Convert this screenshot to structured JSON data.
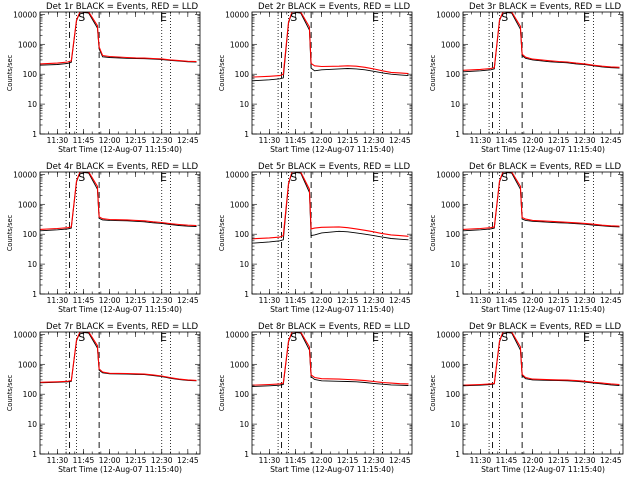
{
  "figure": {
    "colors": {
      "events": "#000000",
      "lld": "#ff0000",
      "axes": "#000000",
      "background": "#ffffff"
    }
  },
  "chart_data": [
    {
      "type": "line",
      "title": "Det 1r BLACK = Events, RED = LLD",
      "xlabel": "Start Time (12-Aug-07 11:15:40)",
      "ylabel": "Counts/sec",
      "yscale": "log",
      "ylim": [
        1,
        12000
      ],
      "x_ticks": [
        "11:30",
        "11:45",
        "12:00",
        "12:15",
        "12:30",
        "12:45"
      ],
      "y_ticks": [
        "1",
        "10",
        "100",
        "1000",
        "10000"
      ],
      "markers": [
        {
          "label": "S",
          "x": "11:44"
        },
        {
          "label": "E",
          "x": "12:31"
        }
      ],
      "vlines_dotted": [
        "11:35",
        "11:41",
        "12:30",
        "12:35"
      ],
      "vlines_dashed": [
        "11:37",
        "11:54"
      ],
      "x": [
        "11:20",
        "11:30",
        "11:36",
        "11:38",
        "11:41",
        "11:43",
        "11:48",
        "11:53",
        "11:54",
        "11:56",
        "12:00",
        "12:10",
        "12:15",
        "12:20",
        "12:25",
        "12:30",
        "12:35",
        "12:40",
        "12:45",
        "12:50"
      ],
      "series": [
        {
          "name": "Events",
          "color": "#000000",
          "values": [
            200,
            210,
            230,
            250,
            6000,
            12000,
            11000,
            3500,
            700,
            380,
            360,
            340,
            335,
            330,
            320,
            310,
            290,
            275,
            260,
            255
          ]
        },
        {
          "name": "LLD",
          "color": "#ff0000",
          "values": [
            220,
            235,
            255,
            280,
            6500,
            12000,
            12000,
            4200,
            820,
            420,
            390,
            360,
            350,
            345,
            335,
            325,
            300,
            285,
            270,
            265
          ]
        }
      ]
    },
    {
      "type": "line",
      "title": "Det 2r BLACK = Events, RED = LLD",
      "xlabel": "Start Time (12-Aug-07 11:15:40)",
      "ylabel": "Counts/sec",
      "yscale": "log",
      "ylim": [
        1,
        12000
      ],
      "x_ticks": [
        "11:30",
        "11:45",
        "12:00",
        "12:15",
        "12:30",
        "12:45"
      ],
      "y_ticks": [
        "1",
        "10",
        "100",
        "1000",
        "10000"
      ],
      "markers": [
        {
          "label": "S",
          "x": "11:44"
        },
        {
          "label": "E",
          "x": "12:31"
        }
      ],
      "vlines_dotted": [
        "11:35",
        "11:41",
        "12:30",
        "12:35"
      ],
      "vlines_dashed": [
        "11:37",
        "11:54"
      ],
      "x": [
        "11:20",
        "11:30",
        "11:36",
        "11:38",
        "11:41",
        "11:43",
        "11:48",
        "11:53",
        "11:54",
        "11:56",
        "12:00",
        "12:10",
        "12:15",
        "12:20",
        "12:25",
        "12:30",
        "12:35",
        "12:40",
        "12:45",
        "12:50"
      ],
      "series": [
        {
          "name": "Events",
          "color": "#000000",
          "values": [
            60,
            65,
            70,
            75,
            5000,
            12000,
            11000,
            3000,
            160,
            130,
            140,
            150,
            155,
            150,
            140,
            125,
            110,
            100,
            95,
            90
          ]
        },
        {
          "name": "LLD",
          "color": "#ff0000",
          "values": [
            80,
            85,
            90,
            100,
            5500,
            12000,
            12000,
            3800,
            230,
            190,
            180,
            185,
            190,
            185,
            170,
            150,
            130,
            115,
            110,
            105
          ]
        }
      ]
    },
    {
      "type": "line",
      "title": "Det 3r BLACK = Events, RED = LLD",
      "xlabel": "Start Time (12-Aug-07 11:15:40)",
      "ylabel": "Counts/sec",
      "yscale": "log",
      "ylim": [
        1,
        12000
      ],
      "x_ticks": [
        "11:30",
        "11:45",
        "12:00",
        "12:15",
        "12:30",
        "12:45"
      ],
      "y_ticks": [
        "1",
        "10",
        "100",
        "1000",
        "10000"
      ],
      "markers": [
        {
          "label": "S",
          "x": "11:44"
        },
        {
          "label": "E",
          "x": "12:31"
        }
      ],
      "vlines_dotted": [
        "11:35",
        "11:41",
        "12:30",
        "12:35"
      ],
      "vlines_dashed": [
        "11:37",
        "11:54"
      ],
      "x": [
        "11:20",
        "11:30",
        "11:36",
        "11:38",
        "11:41",
        "11:43",
        "11:48",
        "11:53",
        "11:54",
        "11:56",
        "12:00",
        "12:10",
        "12:15",
        "12:20",
        "12:25",
        "12:30",
        "12:35",
        "12:40",
        "12:45",
        "12:50"
      ],
      "series": [
        {
          "name": "Events",
          "color": "#000000",
          "values": [
            120,
            130,
            140,
            150,
            6000,
            12000,
            11000,
            3200,
            420,
            340,
            300,
            260,
            250,
            240,
            220,
            210,
            190,
            175,
            165,
            160
          ]
        },
        {
          "name": "LLD",
          "color": "#ff0000",
          "values": [
            135,
            145,
            155,
            165,
            6500,
            12000,
            12000,
            4000,
            470,
            370,
            320,
            280,
            265,
            255,
            235,
            220,
            200,
            185,
            175,
            170
          ]
        }
      ]
    },
    {
      "type": "line",
      "title": "Det 4r BLACK = Events, RED = LLD",
      "xlabel": "Start Time (12-Aug-07 11:15:40)",
      "ylabel": "Counts/sec",
      "yscale": "log",
      "ylim": [
        1,
        12000
      ],
      "x_ticks": [
        "11:30",
        "11:45",
        "12:00",
        "12:15",
        "12:30",
        "12:45"
      ],
      "y_ticks": [
        "1",
        "10",
        "100",
        "1000",
        "10000"
      ],
      "markers": [
        {
          "label": "S",
          "x": "11:44"
        },
        {
          "label": "E",
          "x": "12:31"
        }
      ],
      "vlines_dotted": [
        "11:35",
        "11:41",
        "12:30",
        "12:35"
      ],
      "vlines_dashed": [
        "11:37",
        "11:54"
      ],
      "x": [
        "11:20",
        "11:30",
        "11:36",
        "11:38",
        "11:41",
        "11:43",
        "11:48",
        "11:53",
        "11:54",
        "11:56",
        "12:00",
        "12:10",
        "12:15",
        "12:20",
        "12:25",
        "12:30",
        "12:35",
        "12:40",
        "12:45",
        "12:50"
      ],
      "series": [
        {
          "name": "Events",
          "color": "#000000",
          "values": [
            130,
            140,
            150,
            160,
            5500,
            12000,
            11000,
            3200,
            340,
            300,
            290,
            280,
            270,
            260,
            240,
            230,
            210,
            195,
            185,
            180
          ]
        },
        {
          "name": "LLD",
          "color": "#ff0000",
          "values": [
            145,
            155,
            165,
            175,
            6000,
            12000,
            12000,
            4000,
            380,
            330,
            310,
            300,
            290,
            280,
            260,
            245,
            225,
            210,
            200,
            195
          ]
        }
      ]
    },
    {
      "type": "line",
      "title": "Det 5r BLACK = Events, RED = LLD",
      "xlabel": "Start Time (12-Aug-07 11:15:40)",
      "ylabel": "Counts/sec",
      "yscale": "log",
      "ylim": [
        1,
        12000
      ],
      "x_ticks": [
        "11:30",
        "11:45",
        "12:00",
        "12:15",
        "12:30",
        "12:45"
      ],
      "y_ticks": [
        "1",
        "10",
        "100",
        "1000",
        "10000"
      ],
      "markers": [
        {
          "label": "S",
          "x": "11:44"
        },
        {
          "label": "E",
          "x": "12:31"
        }
      ],
      "vlines_dotted": [
        "11:35",
        "11:41",
        "12:30",
        "12:35"
      ],
      "vlines_dashed": [
        "11:37",
        "11:54"
      ],
      "x": [
        "11:20",
        "11:30",
        "11:36",
        "11:38",
        "11:41",
        "11:43",
        "11:48",
        "11:53",
        "11:54",
        "11:56",
        "12:00",
        "12:10",
        "12:15",
        "12:20",
        "12:25",
        "12:30",
        "12:35",
        "12:40",
        "12:45",
        "12:50"
      ],
      "series": [
        {
          "name": "Events",
          "color": "#000000",
          "values": [
            50,
            55,
            60,
            65,
            4500,
            12000,
            11000,
            2500,
            90,
            95,
            110,
            125,
            120,
            110,
            100,
            90,
            80,
            72,
            68,
            65
          ]
        },
        {
          "name": "LLD",
          "color": "#ff0000",
          "values": [
            70,
            75,
            80,
            90,
            5000,
            12000,
            12000,
            3200,
            150,
            160,
            170,
            175,
            165,
            150,
            135,
            120,
            105,
            95,
            90,
            85
          ]
        }
      ]
    },
    {
      "type": "line",
      "title": "Det 6r BLACK = Events, RED = LLD",
      "xlabel": "Start Time (12-Aug-07 11:15:40)",
      "ylabel": "Counts/sec",
      "yscale": "log",
      "ylim": [
        1,
        12000
      ],
      "x_ticks": [
        "11:30",
        "11:45",
        "12:00",
        "12:15",
        "12:30",
        "12:45"
      ],
      "y_ticks": [
        "1",
        "10",
        "100",
        "1000",
        "10000"
      ],
      "markers": [
        {
          "label": "S",
          "x": "11:44"
        },
        {
          "label": "E",
          "x": "12:31"
        }
      ],
      "vlines_dotted": [
        "11:35",
        "11:41",
        "12:30",
        "12:35"
      ],
      "vlines_dashed": [
        "11:37",
        "11:54"
      ],
      "x": [
        "11:20",
        "11:30",
        "11:36",
        "11:38",
        "11:41",
        "11:43",
        "11:48",
        "11:53",
        "11:54",
        "11:56",
        "12:00",
        "12:10",
        "12:15",
        "12:20",
        "12:25",
        "12:30",
        "12:35",
        "12:40",
        "12:45",
        "12:50"
      ],
      "series": [
        {
          "name": "Events",
          "color": "#000000",
          "values": [
            130,
            140,
            150,
            160,
            5500,
            12000,
            11000,
            3200,
            320,
            290,
            270,
            250,
            240,
            235,
            225,
            215,
            200,
            190,
            180,
            175
          ]
        },
        {
          "name": "LLD",
          "color": "#ff0000",
          "values": [
            145,
            155,
            165,
            175,
            6000,
            12000,
            12000,
            4000,
            360,
            320,
            290,
            270,
            260,
            250,
            240,
            230,
            215,
            200,
            190,
            185
          ]
        }
      ]
    },
    {
      "type": "line",
      "title": "Det 7r BLACK = Events, RED = LLD",
      "xlabel": "Start Time (12-Aug-07 11:15:40)",
      "ylabel": "Counts/sec",
      "yscale": "log",
      "ylim": [
        1,
        12000
      ],
      "x_ticks": [
        "11:30",
        "11:45",
        "12:00",
        "12:15",
        "12:30",
        "12:45"
      ],
      "y_ticks": [
        "1",
        "10",
        "100",
        "1000",
        "10000"
      ],
      "markers": [
        {
          "label": "S",
          "x": "11:44"
        },
        {
          "label": "E",
          "x": "12:31"
        }
      ],
      "vlines_dotted": [
        "11:35",
        "11:41",
        "12:30",
        "12:35"
      ],
      "vlines_dashed": [
        "11:37",
        "11:54"
      ],
      "x": [
        "11:20",
        "11:30",
        "11:36",
        "11:38",
        "11:41",
        "11:43",
        "11:48",
        "11:53",
        "11:54",
        "11:56",
        "12:00",
        "12:10",
        "12:15",
        "12:20",
        "12:25",
        "12:30",
        "12:35",
        "12:40",
        "12:45",
        "12:50"
      ],
      "series": [
        {
          "name": "Events",
          "color": "#000000",
          "values": [
            240,
            250,
            260,
            270,
            6000,
            12000,
            11000,
            3500,
            640,
            520,
            480,
            470,
            460,
            450,
            420,
            390,
            340,
            310,
            290,
            280
          ]
        },
        {
          "name": "LLD",
          "color": "#ff0000",
          "values": [
            250,
            260,
            270,
            285,
            6500,
            12000,
            12000,
            4200,
            700,
            550,
            500,
            490,
            480,
            470,
            440,
            405,
            355,
            320,
            300,
            290
          ]
        }
      ]
    },
    {
      "type": "line",
      "title": "Det 8r BLACK = Events, RED = LLD",
      "xlabel": "Start Time (12-Aug-07 11:15:40)",
      "ylabel": "Counts/sec",
      "yscale": "log",
      "ylim": [
        1,
        12000
      ],
      "x_ticks": [
        "11:30",
        "11:45",
        "12:00",
        "12:15",
        "12:30",
        "12:45"
      ],
      "y_ticks": [
        "1",
        "10",
        "100",
        "1000",
        "10000"
      ],
      "markers": [
        {
          "label": "S",
          "x": "11:44"
        },
        {
          "label": "E",
          "x": "12:31"
        }
      ],
      "vlines_dotted": [
        "11:35",
        "11:41",
        "12:30",
        "12:35"
      ],
      "vlines_dashed": [
        "11:37",
        "11:54"
      ],
      "x": [
        "11:20",
        "11:30",
        "11:36",
        "11:38",
        "11:41",
        "11:43",
        "11:48",
        "11:53",
        "11:54",
        "11:56",
        "12:00",
        "12:10",
        "12:15",
        "12:20",
        "12:25",
        "12:30",
        "12:35",
        "12:40",
        "12:45",
        "12:50"
      ],
      "series": [
        {
          "name": "Events",
          "color": "#000000",
          "values": [
            180,
            190,
            200,
            210,
            5500,
            12000,
            11000,
            3000,
            380,
            310,
            280,
            270,
            265,
            260,
            245,
            230,
            215,
            205,
            200,
            195
          ]
        },
        {
          "name": "LLD",
          "color": "#ff0000",
          "values": [
            200,
            210,
            220,
            235,
            6000,
            12000,
            12000,
            3800,
            440,
            360,
            330,
            320,
            310,
            300,
            285,
            265,
            245,
            235,
            225,
            220
          ]
        }
      ]
    },
    {
      "type": "line",
      "title": "Det 9r BLACK = Events, RED = LLD",
      "xlabel": "Start Time (12-Aug-07 11:15:40)",
      "ylabel": "Counts/sec",
      "yscale": "log",
      "ylim": [
        1,
        12000
      ],
      "x_ticks": [
        "11:30",
        "11:45",
        "12:00",
        "12:15",
        "12:30",
        "12:45"
      ],
      "y_ticks": [
        "1",
        "10",
        "100",
        "1000",
        "10000"
      ],
      "markers": [
        {
          "label": "S",
          "x": "11:44"
        },
        {
          "label": "E",
          "x": "12:31"
        }
      ],
      "vlines_dotted": [
        "11:35",
        "11:41",
        "12:30",
        "12:35"
      ],
      "vlines_dashed": [
        "11:37",
        "11:54"
      ],
      "x": [
        "11:20",
        "11:30",
        "11:36",
        "11:38",
        "11:41",
        "11:43",
        "11:48",
        "11:53",
        "11:54",
        "11:56",
        "12:00",
        "12:10",
        "12:15",
        "12:20",
        "12:25",
        "12:30",
        "12:35",
        "12:40",
        "12:45",
        "12:50"
      ],
      "series": [
        {
          "name": "Events",
          "color": "#000000",
          "values": [
            190,
            200,
            210,
            220,
            5500,
            12000,
            11000,
            3000,
            420,
            330,
            300,
            290,
            285,
            280,
            270,
            255,
            235,
            220,
            205,
            195
          ]
        },
        {
          "name": "LLD",
          "color": "#ff0000",
          "values": [
            200,
            210,
            220,
            230,
            6000,
            12000,
            12000,
            3800,
            460,
            360,
            320,
            305,
            300,
            295,
            285,
            270,
            250,
            235,
            220,
            210
          ]
        }
      ]
    }
  ]
}
